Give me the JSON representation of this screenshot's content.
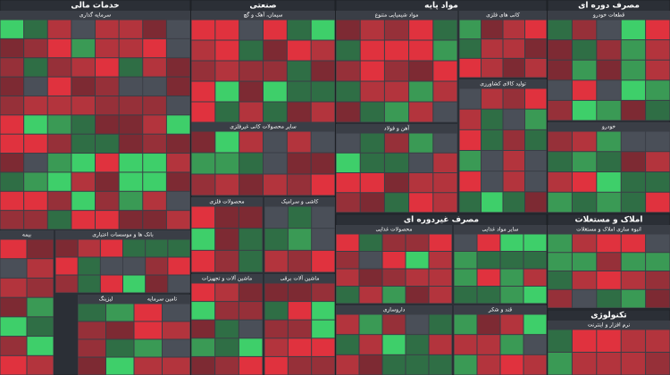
{
  "sectors": [
    {
      "title": "خدمات مالی",
      "subsectors": [
        {
          "title": "سرمایه گذاری"
        },
        {
          "title": "بیمه"
        },
        {
          "title": "بانک ها و موسسات اعتباری"
        },
        {
          "title": "لیزینگ"
        },
        {
          "title": "تامین سرمایه"
        }
      ]
    },
    {
      "title": "صنعتی",
      "subsectors": [
        {
          "title": "سیمان، آهک و گچ"
        },
        {
          "title": "سایر محصولات کانی غیرفلزی"
        },
        {
          "title": "محصولات فلزی"
        },
        {
          "title": "کاشی و سرامیک"
        },
        {
          "title": "ماشین آلات و تجهیزات"
        },
        {
          "title": "ماشین آلات برقی"
        }
      ]
    },
    {
      "title": "مواد پایه",
      "subsectors": [
        {
          "title": "مواد شیمیایی متنوع"
        },
        {
          "title": "آهن و فولاد"
        },
        {
          "title": "کانی های فلزی"
        },
        {
          "title": "تولید کالای کشاورزی"
        }
      ]
    },
    {
      "title": "مصرف دوره ای",
      "subsectors": [
        {
          "title": "قطعات خودرو"
        },
        {
          "title": "خودرو"
        }
      ]
    },
    {
      "title": "مصرف غیردوره ای",
      "subsectors": [
        {
          "title": "محصولات غذایی"
        },
        {
          "title": "سایر مواد غذایی"
        },
        {
          "title": "داروسازی"
        },
        {
          "title": "قند و شکر"
        }
      ]
    },
    {
      "title": "املاک و مستغلات",
      "subsectors": [
        {
          "title": "انبوه سازی املاک و مستغلات"
        }
      ]
    },
    {
      "title": "تکنولوژی",
      "subsectors": [
        {
          "title": "نرم افزار و اینترنت"
        }
      ]
    }
  ]
}
